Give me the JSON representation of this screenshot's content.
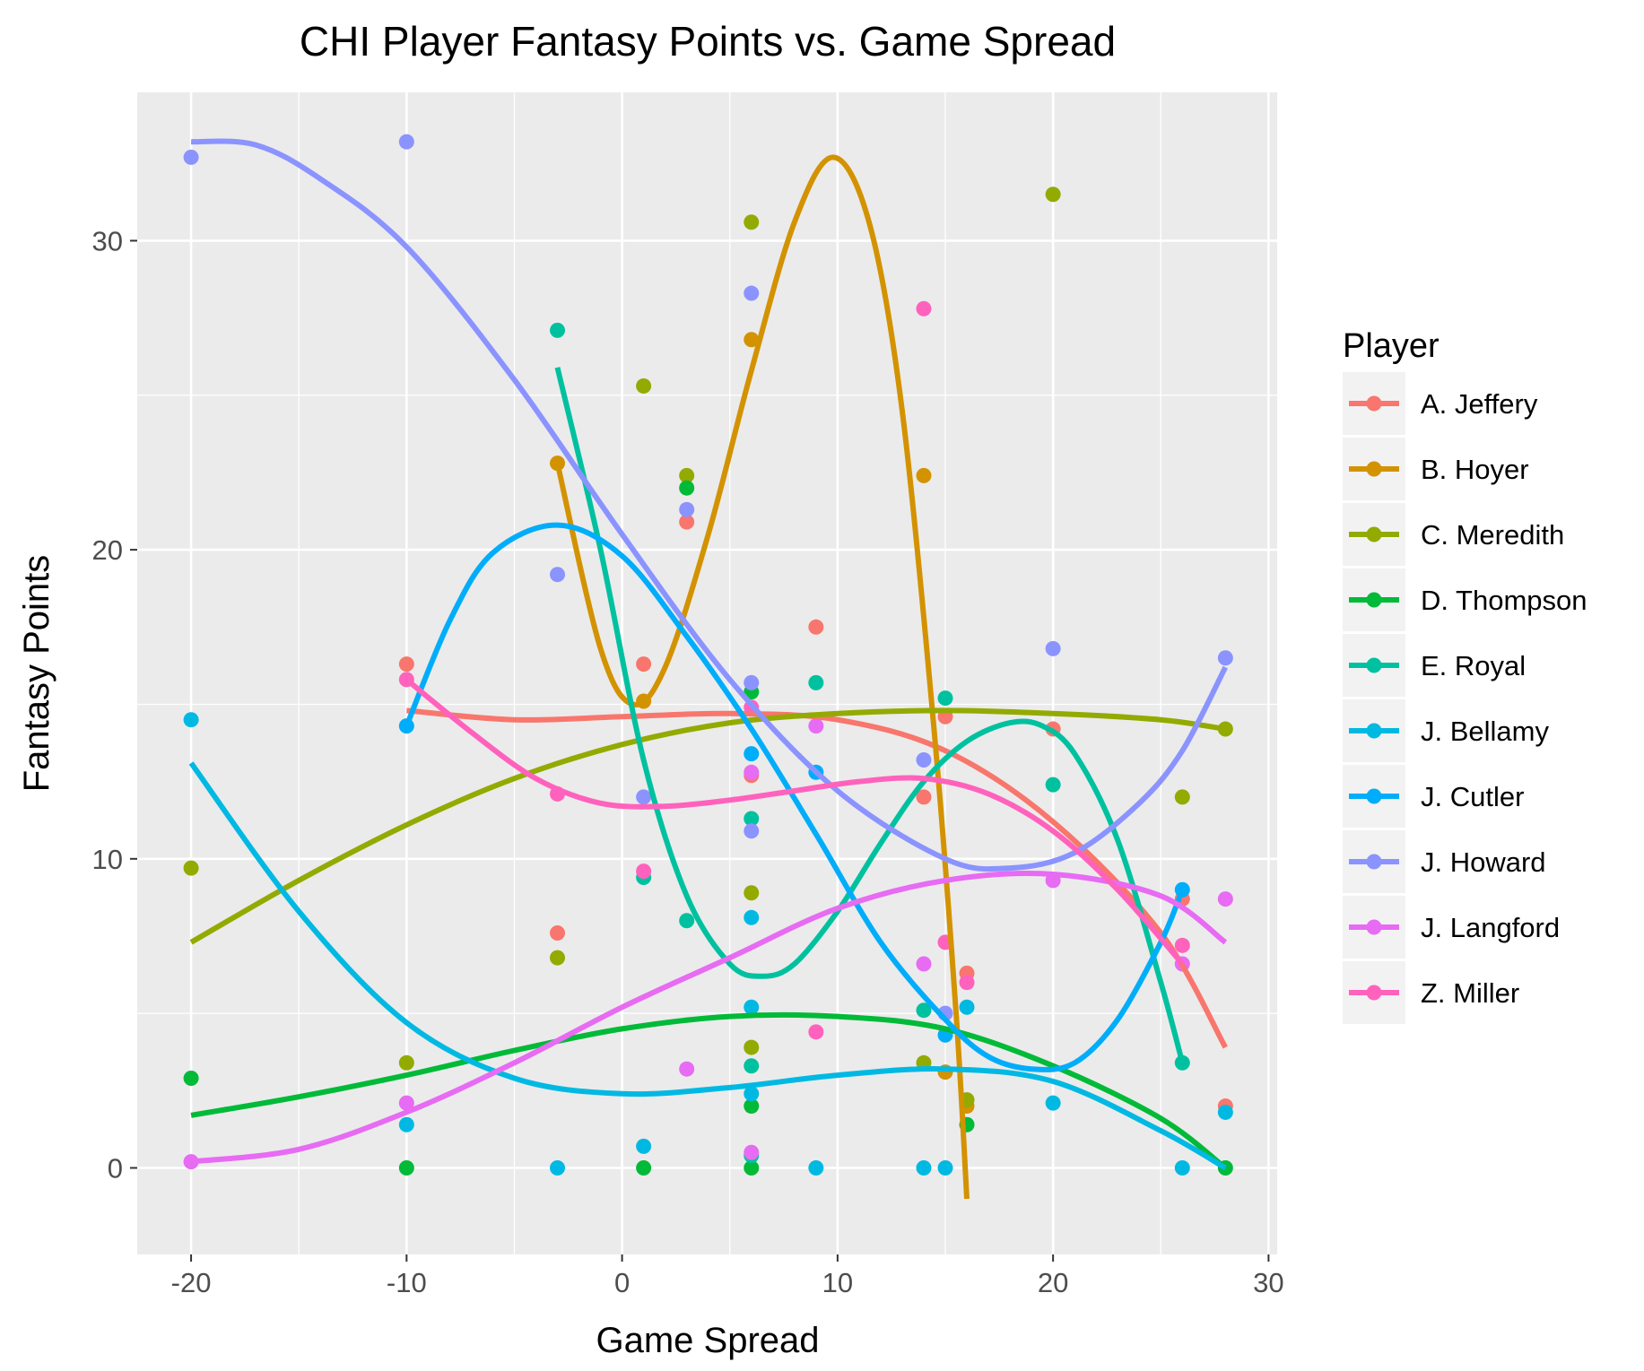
{
  "chart_data": {
    "type": "scatter",
    "title": "CHI Player Fantasy Points vs. Game Spread",
    "xlabel": "Game Spread",
    "ylabel": "Fantasy Points",
    "xlim": [
      -22.5,
      30.4
    ],
    "ylim": [
      -2.8,
      34.8
    ],
    "x_ticks": [
      -20,
      -10,
      0,
      10,
      20,
      30
    ],
    "y_ticks": [
      0,
      10,
      20,
      30
    ],
    "x_tick_labels": [
      "-20",
      "-10",
      "0",
      "10",
      "20",
      "30"
    ],
    "y_tick_labels": [
      "0",
      "10",
      "20",
      "30"
    ],
    "grid": true,
    "legend_title": "Player",
    "legend_position": "right",
    "series": [
      {
        "name": "A. Jeffery",
        "color": "#F8766D",
        "points": [
          [
            -10,
            16.3
          ],
          [
            -3,
            7.6
          ],
          [
            1,
            16.3
          ],
          [
            3,
            20.9
          ],
          [
            6,
            12.7
          ],
          [
            9,
            17.5
          ],
          [
            14,
            12
          ],
          [
            15,
            14.6
          ],
          [
            16,
            6.3
          ],
          [
            20,
            14.2
          ],
          [
            26,
            8.7
          ],
          [
            28,
            2
          ]
        ],
        "curve": [
          [
            -10,
            14.8
          ],
          [
            -5,
            14.5
          ],
          [
            0,
            14.6
          ],
          [
            5,
            14.7
          ],
          [
            10,
            14.5
          ],
          [
            15,
            13.5
          ],
          [
            20,
            11.2
          ],
          [
            25,
            7.6
          ],
          [
            28,
            3.9
          ]
        ]
      },
      {
        "name": "B. Hoyer",
        "color": "#D39200",
        "points": [
          [
            -3,
            22.8
          ],
          [
            1,
            15.1
          ],
          [
            6,
            26.8
          ],
          [
            14,
            22.4
          ],
          [
            15,
            3.1
          ],
          [
            16,
            2
          ]
        ],
        "curve": [
          [
            -3,
            22.8
          ],
          [
            -1,
            16.8
          ],
          [
            0.5,
            15
          ],
          [
            2,
            16.2
          ],
          [
            4,
            20.5
          ],
          [
            6,
            25.8
          ],
          [
            8,
            30.6
          ],
          [
            9.8,
            32.7
          ],
          [
            11.5,
            30.5
          ],
          [
            13,
            24.5
          ],
          [
            14.5,
            14
          ],
          [
            15.5,
            5
          ],
          [
            16,
            -1
          ]
        ]
      },
      {
        "name": "C. Meredith",
        "color": "#93AA00",
        "points": [
          [
            -20,
            9.7
          ],
          [
            -10,
            3.4
          ],
          [
            -3,
            6.8
          ],
          [
            1,
            25.3
          ],
          [
            3,
            22.4
          ],
          [
            6,
            30.6
          ],
          [
            6,
            8.9
          ],
          [
            6,
            3.9
          ],
          [
            14,
            3.4
          ],
          [
            16,
            2.2
          ],
          [
            20,
            31.5
          ],
          [
            26,
            12
          ],
          [
            28,
            14.2
          ]
        ],
        "curve": [
          [
            -20,
            7.3
          ],
          [
            -15,
            9.3
          ],
          [
            -10,
            11.1
          ],
          [
            -5,
            12.6
          ],
          [
            0,
            13.7
          ],
          [
            5,
            14.4
          ],
          [
            10,
            14.7
          ],
          [
            15,
            14.8
          ],
          [
            20,
            14.7
          ],
          [
            25,
            14.5
          ],
          [
            28,
            14.2
          ]
        ]
      },
      {
        "name": "D. Thompson",
        "color": "#00BA38",
        "points": [
          [
            -20,
            2.9
          ],
          [
            -10,
            0
          ],
          [
            1,
            0
          ],
          [
            3,
            22
          ],
          [
            6,
            15.4
          ],
          [
            6,
            2
          ],
          [
            6,
            0
          ],
          [
            16,
            1.4
          ],
          [
            28,
            0
          ]
        ],
        "curve": [
          [
            -20,
            1.7
          ],
          [
            -15,
            2.3
          ],
          [
            -10,
            3
          ],
          [
            -5,
            3.8
          ],
          [
            0,
            4.5
          ],
          [
            5,
            4.9
          ],
          [
            10,
            4.9
          ],
          [
            15,
            4.5
          ],
          [
            20,
            3.3
          ],
          [
            25,
            1.6
          ],
          [
            28,
            0
          ]
        ]
      },
      {
        "name": "E. Royal",
        "color": "#00C19F",
        "points": [
          [
            -3,
            27.1
          ],
          [
            1,
            9.4
          ],
          [
            3,
            8
          ],
          [
            6,
            11.3
          ],
          [
            6,
            3.3
          ],
          [
            6,
            0.4
          ],
          [
            9,
            15.7
          ],
          [
            14,
            5.1
          ],
          [
            15,
            15.2
          ],
          [
            20,
            12.4
          ],
          [
            26,
            3.4
          ]
        ],
        "curve": [
          [
            -3,
            25.9
          ],
          [
            -1,
            20
          ],
          [
            1,
            13.2
          ],
          [
            3,
            8.8
          ],
          [
            5,
            6.6
          ],
          [
            6.5,
            6.2
          ],
          [
            8,
            6.6
          ],
          [
            10,
            8.3
          ],
          [
            12,
            10.5
          ],
          [
            14,
            12.5
          ],
          [
            16,
            13.8
          ],
          [
            18,
            14.4
          ],
          [
            19.5,
            14.3
          ],
          [
            21,
            13.4
          ],
          [
            23,
            10.6
          ],
          [
            25,
            6
          ],
          [
            26,
            3.4
          ]
        ]
      },
      {
        "name": "J. Bellamy",
        "color": "#00B9E3",
        "points": [
          [
            -20,
            14.5
          ],
          [
            -10,
            1.4
          ],
          [
            -3,
            0
          ],
          [
            1,
            0.7
          ],
          [
            6,
            8.1
          ],
          [
            6,
            5.2
          ],
          [
            6,
            2.4
          ],
          [
            9,
            0
          ],
          [
            14,
            0
          ],
          [
            15,
            0
          ],
          [
            16,
            5.2
          ],
          [
            20,
            2.1
          ],
          [
            26,
            0
          ],
          [
            28,
            1.8
          ]
        ],
        "curve": [
          [
            -20,
            13.1
          ],
          [
            -15,
            8.3
          ],
          [
            -10,
            4.7
          ],
          [
            -5,
            2.9
          ],
          [
            0,
            2.4
          ],
          [
            5,
            2.6
          ],
          [
            10,
            3
          ],
          [
            15,
            3.2
          ],
          [
            20,
            2.8
          ],
          [
            25,
            1.2
          ],
          [
            28,
            0
          ]
        ]
      },
      {
        "name": "J. Cutler",
        "color": "#00ADFA",
        "points": [
          [
            -10,
            14.3
          ],
          [
            6,
            13.4
          ],
          [
            9,
            12.8
          ],
          [
            15,
            4.3
          ],
          [
            26,
            9
          ]
        ],
        "curve": [
          [
            -10,
            14.3
          ],
          [
            -8,
            17.7
          ],
          [
            -6,
            19.9
          ],
          [
            -3,
            20.8
          ],
          [
            0,
            19.8
          ],
          [
            3,
            17.2
          ],
          [
            6,
            14.2
          ],
          [
            9,
            10.8
          ],
          [
            12,
            7.3
          ],
          [
            15,
            4.8
          ],
          [
            17,
            3.6
          ],
          [
            19,
            3.2
          ],
          [
            21,
            3.4
          ],
          [
            23,
            4.8
          ],
          [
            25,
            7.3
          ],
          [
            26,
            9
          ]
        ]
      },
      {
        "name": "J. Howard",
        "color": "#8B93FF",
        "points": [
          [
            -20,
            32.7
          ],
          [
            -10,
            33.2
          ],
          [
            -3,
            19.2
          ],
          [
            1,
            12
          ],
          [
            3,
            21.3
          ],
          [
            6,
            28.3
          ],
          [
            6,
            15.7
          ],
          [
            6,
            10.9
          ],
          [
            14,
            13.2
          ],
          [
            15,
            5
          ],
          [
            20,
            16.8
          ],
          [
            28,
            16.5
          ]
        ],
        "curve": [
          [
            -20,
            33.2
          ],
          [
            -17,
            33.1
          ],
          [
            -14,
            32
          ],
          [
            -10,
            29.8
          ],
          [
            -5,
            25.5
          ],
          [
            0,
            20.5
          ],
          [
            5,
            15.8
          ],
          [
            10,
            12.2
          ],
          [
            15,
            10
          ],
          [
            18,
            9.7
          ],
          [
            21,
            10.2
          ],
          [
            24,
            11.8
          ],
          [
            26,
            13.5
          ],
          [
            28,
            16.2
          ]
        ]
      },
      {
        "name": "J. Langford",
        "color": "#E76BF3",
        "points": [
          [
            -20,
            0.2
          ],
          [
            -10,
            2.1
          ],
          [
            3,
            3.2
          ],
          [
            6,
            12.8
          ],
          [
            6,
            0.5
          ],
          [
            9,
            14.3
          ],
          [
            14,
            6.6
          ],
          [
            20,
            9.3
          ],
          [
            26,
            6.6
          ],
          [
            28,
            8.7
          ]
        ],
        "curve": [
          [
            -20,
            0.2
          ],
          [
            -15,
            0.6
          ],
          [
            -10,
            1.8
          ],
          [
            -5,
            3.4
          ],
          [
            0,
            5.2
          ],
          [
            5,
            6.8
          ],
          [
            10,
            8.4
          ],
          [
            15,
            9.3
          ],
          [
            20,
            9.5
          ],
          [
            25,
            8.8
          ],
          [
            28,
            7.3
          ]
        ]
      },
      {
        "name": "Z. Miller",
        "color": "#FF62BC",
        "points": [
          [
            -10,
            15.8
          ],
          [
            -3,
            12.1
          ],
          [
            1,
            9.6
          ],
          [
            6,
            14.9
          ],
          [
            9,
            4.4
          ],
          [
            14,
            27.8
          ],
          [
            15,
            7.3
          ],
          [
            16,
            6
          ],
          [
            26,
            7.2
          ]
        ],
        "curve": [
          [
            -10,
            15.8
          ],
          [
            -7,
            14.1
          ],
          [
            -4,
            12.6
          ],
          [
            -1,
            11.8
          ],
          [
            2,
            11.7
          ],
          [
            5,
            11.9
          ],
          [
            8,
            12.2
          ],
          [
            11,
            12.5
          ],
          [
            14,
            12.6
          ],
          [
            17,
            12.1
          ],
          [
            20,
            10.9
          ],
          [
            23,
            9
          ],
          [
            26,
            6.6
          ]
        ]
      }
    ]
  }
}
